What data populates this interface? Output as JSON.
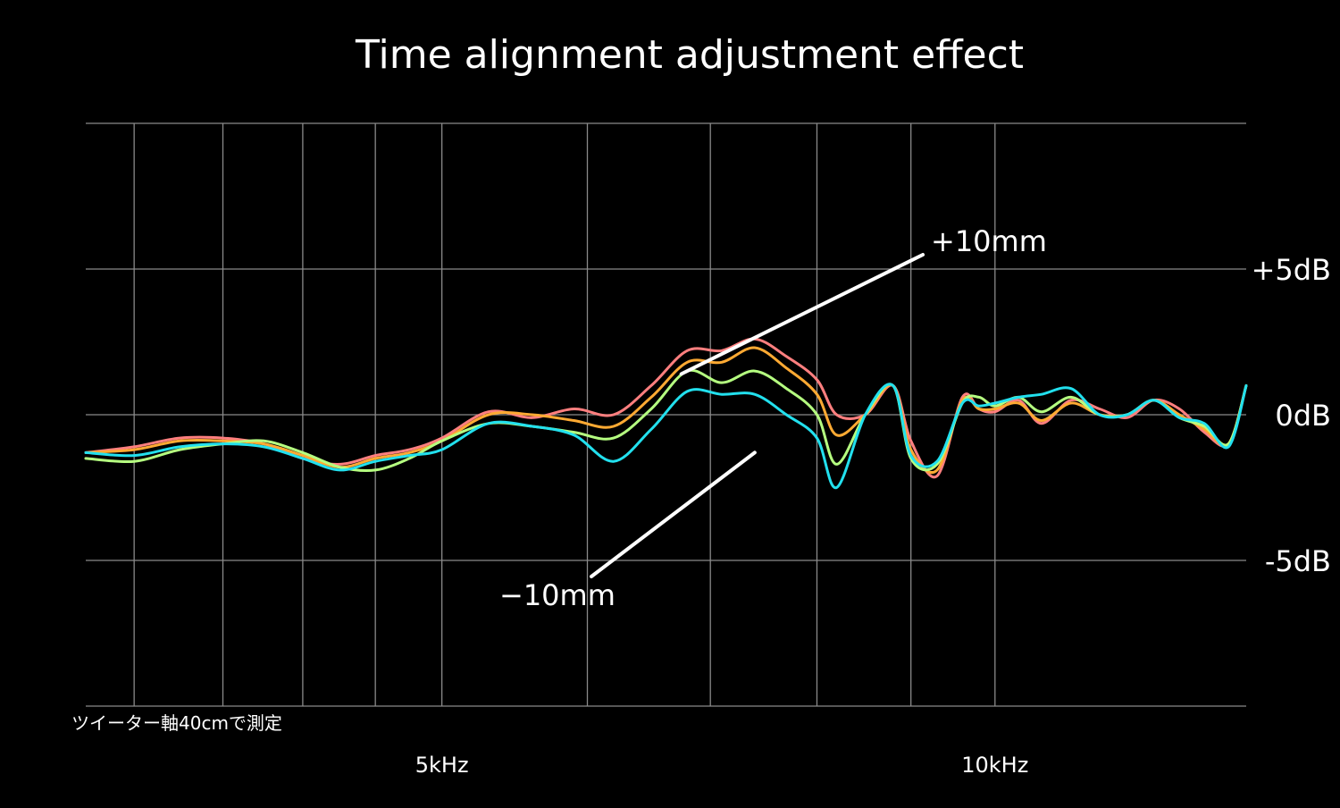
{
  "chart_data": {
    "type": "line",
    "title": "Time alignment adjustment effect",
    "xlabel": "",
    "ylabel": "",
    "x_scale": "log",
    "xlim": [
      3200,
      13700
    ],
    "ylim": [
      -10,
      10
    ],
    "grid": true,
    "background": "#000000",
    "x_ticks": [
      {
        "value": 5000,
        "label": "5kHz"
      },
      {
        "value": 10000,
        "label": "10kHz"
      }
    ],
    "x_gridlines": [
      3400,
      3800,
      4200,
      4600,
      5000,
      6000,
      7000,
      8000,
      9000,
      10000
    ],
    "y_ticks": [
      {
        "value": 5,
        "label": "+5dB"
      },
      {
        "value": 0,
        "label": "0dB"
      },
      {
        "value": -5,
        "label": "-5dB"
      }
    ],
    "note": "ツイーター軸40cmで測定",
    "annotations": [
      {
        "text": "+10mm",
        "target_x": 6750,
        "target_y": 1.4
      },
      {
        "text": "−10mm",
        "target_x": 7400,
        "target_y": -1.3
      }
    ],
    "x": [
      3200,
      3400,
      3600,
      3800,
      4000,
      4200,
      4400,
      4600,
      4800,
      5000,
      5300,
      5600,
      5900,
      6200,
      6500,
      6800,
      7100,
      7400,
      7700,
      8000,
      8200,
      8500,
      8800,
      9000,
      9300,
      9600,
      9800,
      10000,
      10300,
      10600,
      11000,
      11400,
      11800,
      12200,
      12600,
      13000,
      13400,
      13700
    ],
    "series": [
      {
        "color": "#ff7f7f",
        "values": [
          -1.3,
          -1.1,
          -0.8,
          -0.8,
          -1.0,
          -1.5,
          -1.7,
          -1.4,
          -1.2,
          -0.8,
          0.1,
          -0.1,
          0.2,
          0.0,
          1.0,
          2.2,
          2.2,
          2.6,
          2.0,
          1.2,
          0.0,
          0.0,
          1.0,
          -0.9,
          -2.1,
          0.6,
          0.2,
          0.1,
          0.5,
          -0.3,
          0.5,
          0.2,
          -0.1,
          0.5,
          0.2,
          -0.6,
          -1.0,
          1.0
        ]
      },
      {
        "color": "#ffaa33",
        "values": [
          -1.3,
          -1.2,
          -0.9,
          -0.9,
          -1.0,
          -1.4,
          -1.8,
          -1.5,
          -1.3,
          -0.9,
          0.0,
          0.0,
          -0.2,
          -0.4,
          0.6,
          1.8,
          1.8,
          2.3,
          1.6,
          0.7,
          -0.7,
          0.0,
          1.0,
          -1.2,
          -1.9,
          0.5,
          0.2,
          0.2,
          0.4,
          -0.2,
          0.4,
          0.0,
          0.0,
          0.5,
          0.0,
          -0.5,
          -1.0,
          1.0
        ]
      },
      {
        "color": "#b5ff80",
        "values": [
          -1.5,
          -1.6,
          -1.2,
          -1.0,
          -0.9,
          -1.3,
          -1.8,
          -1.9,
          -1.5,
          -0.9,
          -0.3,
          -0.4,
          -0.6,
          -0.8,
          0.2,
          1.5,
          1.1,
          1.5,
          0.9,
          0.0,
          -1.7,
          0.0,
          1.0,
          -1.5,
          -1.7,
          0.4,
          0.6,
          0.3,
          0.6,
          0.1,
          0.6,
          0.0,
          0.0,
          0.5,
          -0.1,
          -0.4,
          -1.0,
          1.0
        ]
      },
      {
        "color": "#22e0ee",
        "values": [
          -1.3,
          -1.4,
          -1.1,
          -1.0,
          -1.1,
          -1.5,
          -1.9,
          -1.6,
          -1.4,
          -1.2,
          -0.3,
          -0.4,
          -0.7,
          -1.6,
          -0.5,
          0.8,
          0.7,
          0.7,
          0.0,
          -0.8,
          -2.5,
          0.0,
          1.0,
          -1.4,
          -1.6,
          0.4,
          0.3,
          0.4,
          0.6,
          0.7,
          0.9,
          0.0,
          0.0,
          0.5,
          -0.1,
          -0.3,
          -1.1,
          1.0
        ]
      }
    ]
  }
}
